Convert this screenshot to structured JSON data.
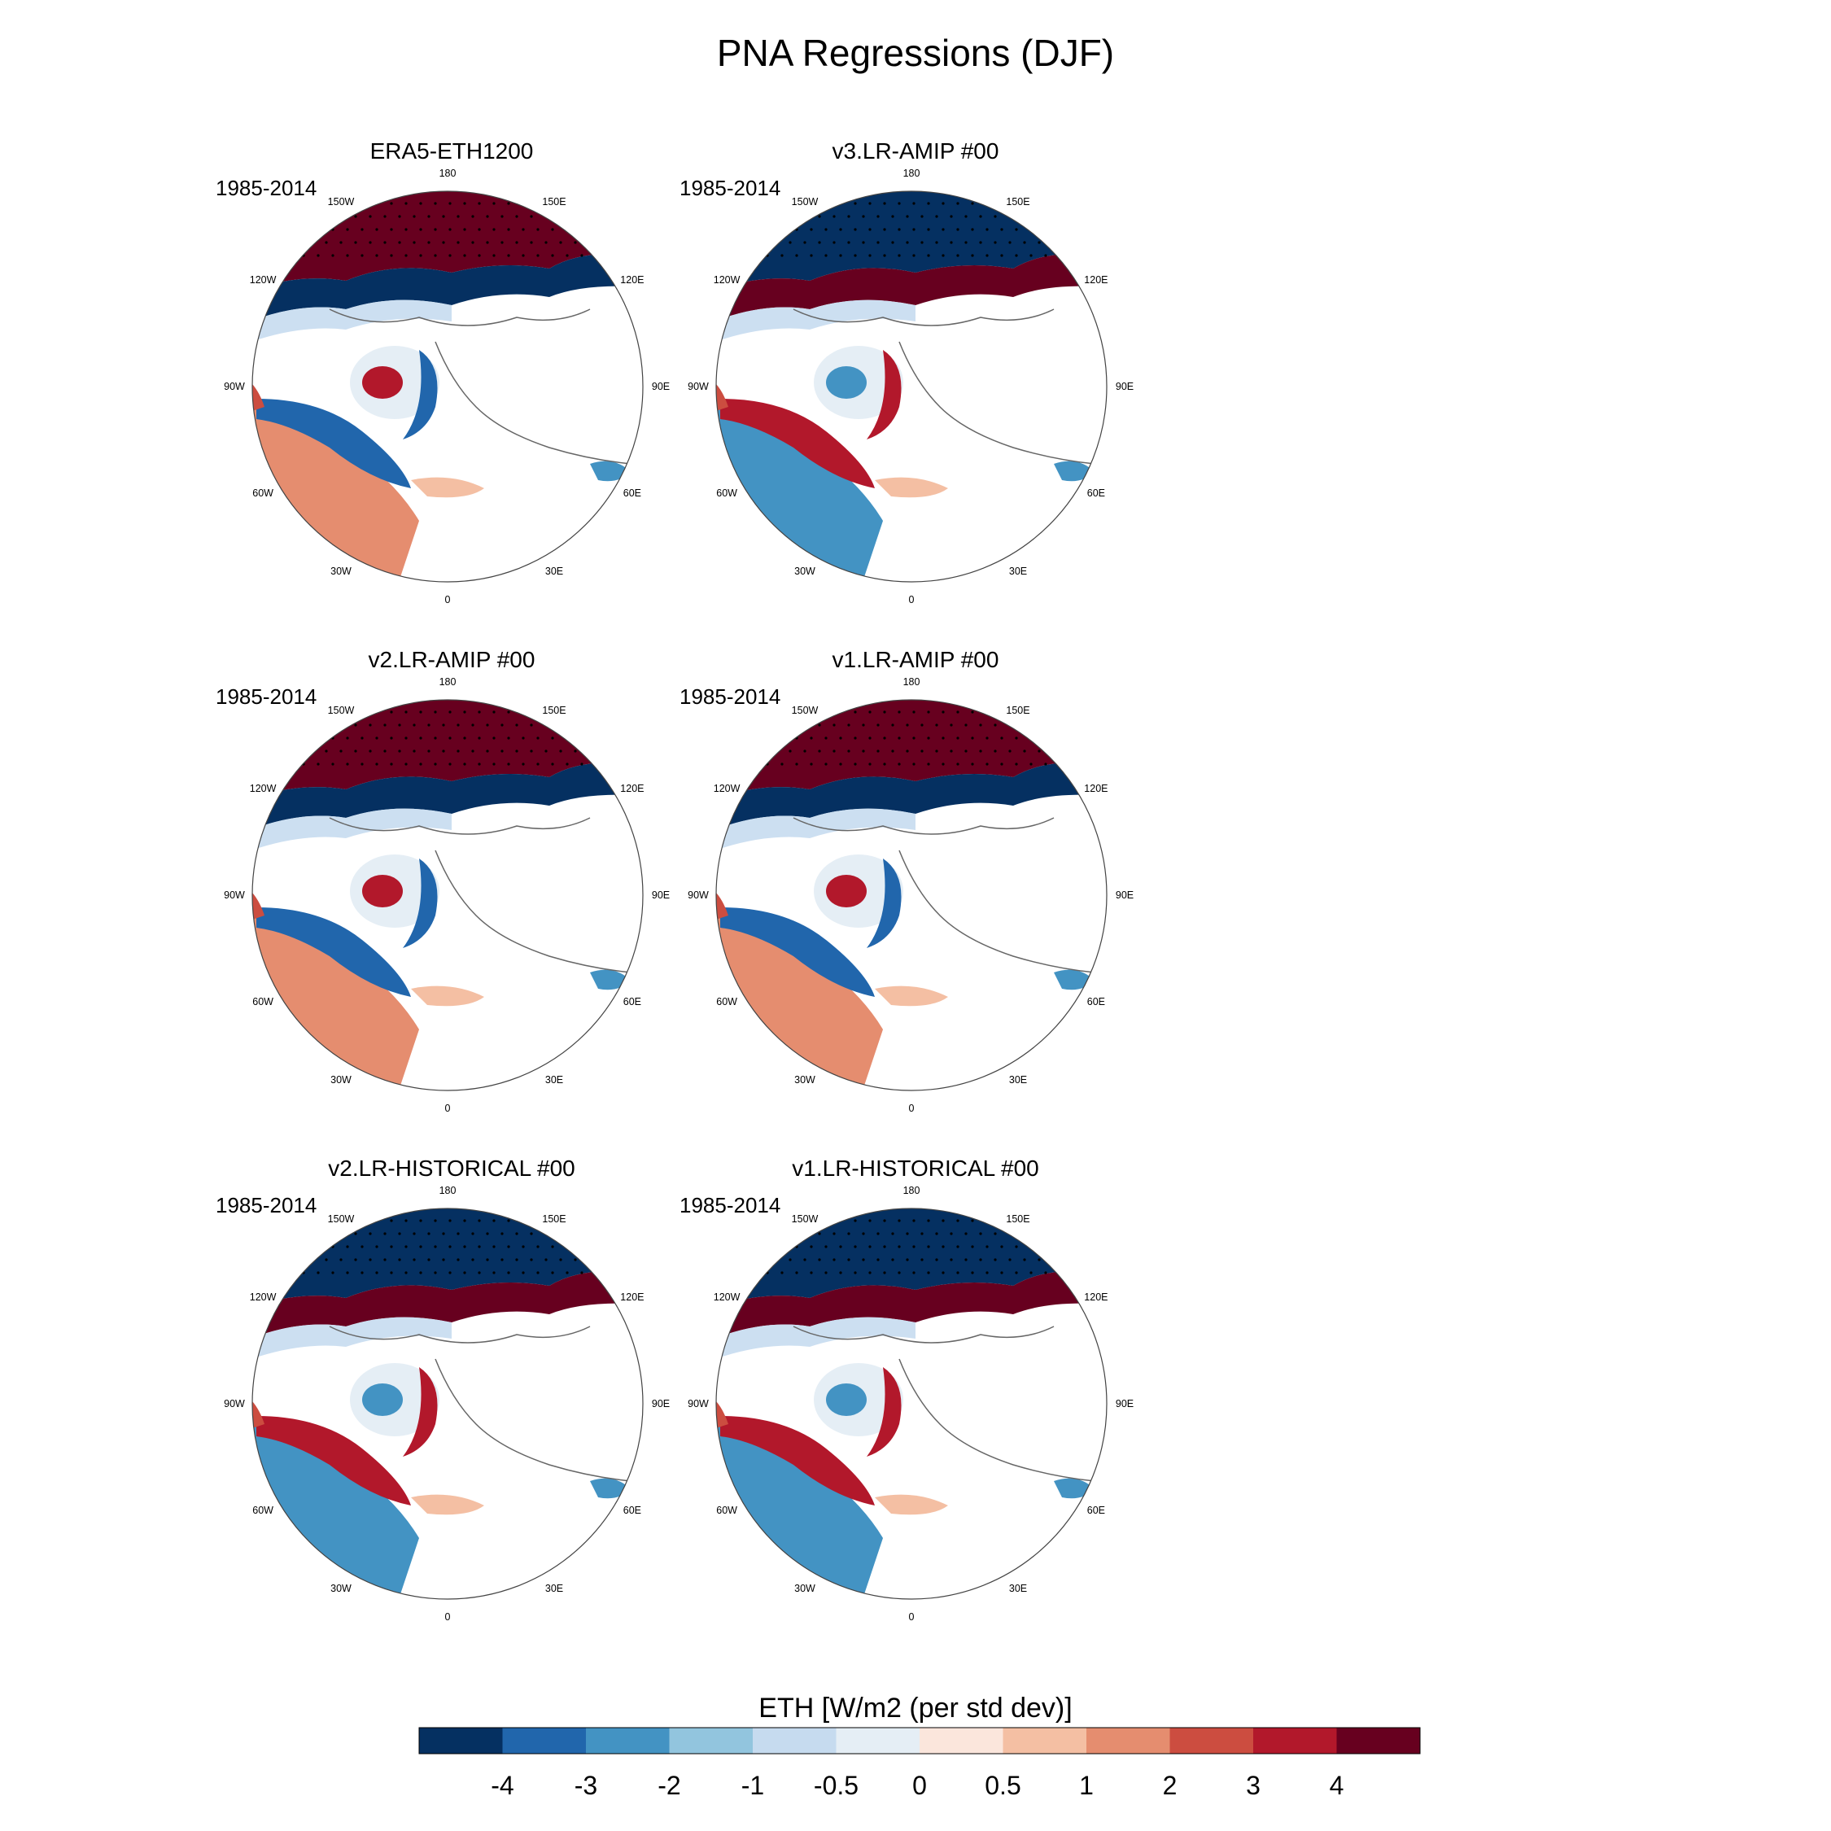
{
  "title": "PNA Regressions (DJF)",
  "panels": [
    {
      "title": "ERA5-ETH1200",
      "period": "1985-2014",
      "pattern": "pos"
    },
    {
      "title": "v3.LR-AMIP  #00",
      "period": "1985-2014",
      "pattern": "neg"
    },
    {
      "title": "v2.LR-AMIP  #00",
      "period": "1985-2014",
      "pattern": "pos"
    },
    {
      "title": "v1.LR-AMIP  #00",
      "period": "1985-2014",
      "pattern": "pos"
    },
    {
      "title": "v2.LR-HISTORICAL  #00",
      "period": "1985-2014",
      "pattern": "neg"
    },
    {
      "title": "v1.LR-HISTORICAL  #00",
      "period": "1985-2014",
      "pattern": "neg"
    }
  ],
  "longitude_labels": [
    "180",
    "150E",
    "120E",
    "90E",
    "60E",
    "30E",
    "0",
    "30W",
    "60W",
    "90W",
    "120W",
    "150W"
  ],
  "colorbar": {
    "title": "ETH [W/m2 (per std dev)]",
    "tick_labels": [
      "-4",
      "-3",
      "-2",
      "-1",
      "-0.5",
      "0",
      "0.5",
      "1",
      "2",
      "3",
      "4"
    ],
    "colors": [
      "#053061",
      "#2166ac",
      "#4393c3",
      "#92c5de",
      "#c6dbef",
      "#e5eef5",
      "#fbe6dc",
      "#f4bfa3",
      "#e58d6f",
      "#cc4d40",
      "#b2182b",
      "#67001f"
    ]
  }
}
